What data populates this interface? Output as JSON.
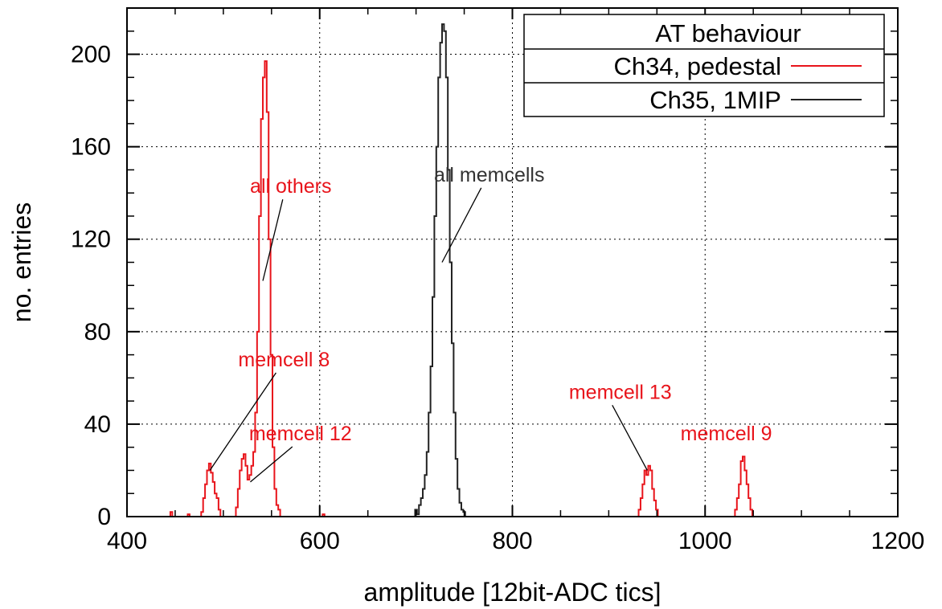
{
  "chart_data": {
    "type": "histogram",
    "title": "",
    "xlabel": "amplitude [12bit-ADC tics]",
    "ylabel": "no. entries",
    "xlim": [
      400,
      1200
    ],
    "ylim": [
      0,
      220
    ],
    "x_ticks": [
      400,
      600,
      800,
      1000,
      1200
    ],
    "y_ticks": [
      0,
      40,
      80,
      120,
      160,
      200
    ],
    "grid": true,
    "legend": {
      "title": "AT behaviour",
      "placement": "top-right",
      "entries": [
        {
          "label": "Ch34, pedestal",
          "color": "#e8141b"
        },
        {
          "label": "Ch35, 1MIP",
          "color": "#222222"
        }
      ]
    },
    "series": [
      {
        "name": "Ch34, pedestal",
        "color": "#e8141b",
        "bin_width": 2,
        "points": [
          [
            444,
            0
          ],
          [
            446,
            2
          ],
          [
            448,
            0
          ],
          [
            462,
            0
          ],
          [
            464,
            1
          ],
          [
            466,
            0
          ],
          [
            476,
            0
          ],
          [
            478,
            2
          ],
          [
            480,
            8
          ],
          [
            482,
            14
          ],
          [
            484,
            20
          ],
          [
            486,
            23
          ],
          [
            488,
            19
          ],
          [
            490,
            15
          ],
          [
            492,
            10
          ],
          [
            494,
            8
          ],
          [
            496,
            3
          ],
          [
            498,
            0
          ],
          [
            512,
            0
          ],
          [
            514,
            4
          ],
          [
            516,
            12
          ],
          [
            518,
            20
          ],
          [
            520,
            25
          ],
          [
            522,
            27
          ],
          [
            524,
            22
          ],
          [
            526,
            16
          ],
          [
            528,
            18
          ],
          [
            530,
            22
          ],
          [
            532,
            28
          ],
          [
            534,
            45
          ],
          [
            536,
            80
          ],
          [
            538,
            130
          ],
          [
            540,
            172
          ],
          [
            542,
            190
          ],
          [
            544,
            197
          ],
          [
            546,
            175
          ],
          [
            548,
            120
          ],
          [
            550,
            70
          ],
          [
            552,
            30
          ],
          [
            554,
            12
          ],
          [
            556,
            5
          ],
          [
            558,
            3
          ],
          [
            560,
            0
          ],
          [
            602,
            0
          ],
          [
            604,
            1
          ],
          [
            606,
            0
          ],
          [
            930,
            0
          ],
          [
            932,
            3
          ],
          [
            934,
            8
          ],
          [
            936,
            14
          ],
          [
            938,
            20
          ],
          [
            940,
            18
          ],
          [
            942,
            22
          ],
          [
            944,
            20
          ],
          [
            946,
            12
          ],
          [
            948,
            7
          ],
          [
            950,
            3
          ],
          [
            952,
            0
          ],
          [
            1030,
            0
          ],
          [
            1032,
            3
          ],
          [
            1034,
            8
          ],
          [
            1036,
            14
          ],
          [
            1038,
            24
          ],
          [
            1040,
            26
          ],
          [
            1042,
            20
          ],
          [
            1044,
            14
          ],
          [
            1046,
            8
          ],
          [
            1048,
            3
          ],
          [
            1050,
            0
          ]
        ]
      },
      {
        "name": "Ch35, 1MIP",
        "color": "#222222",
        "bin_width": 2,
        "points": [
          [
            698,
            0
          ],
          [
            700,
            3
          ],
          [
            702,
            1
          ],
          [
            704,
            5
          ],
          [
            706,
            8
          ],
          [
            708,
            12
          ],
          [
            710,
            18
          ],
          [
            712,
            28
          ],
          [
            714,
            45
          ],
          [
            716,
            65
          ],
          [
            718,
            95
          ],
          [
            720,
            130
          ],
          [
            722,
            160
          ],
          [
            724,
            190
          ],
          [
            726,
            205
          ],
          [
            728,
            213
          ],
          [
            730,
            210
          ],
          [
            732,
            190
          ],
          [
            734,
            150
          ],
          [
            736,
            110
          ],
          [
            738,
            75
          ],
          [
            740,
            45
          ],
          [
            742,
            25
          ],
          [
            744,
            12
          ],
          [
            746,
            6
          ],
          [
            748,
            3
          ],
          [
            750,
            2
          ],
          [
            752,
            0
          ]
        ]
      }
    ],
    "annotations": [
      {
        "text": "all others",
        "color": "#e8141b",
        "x": 570,
        "y": 140,
        "arrow_to": [
          541,
          102
        ]
      },
      {
        "text": "all memcells",
        "color": "#333333",
        "x": 776,
        "y": 145,
        "arrow_to": [
          727,
          110
        ]
      },
      {
        "text": "memcell 8",
        "color": "#e8141b",
        "x": 563,
        "y": 65,
        "arrow_to": [
          486,
          20
        ]
      },
      {
        "text": "memcell 12",
        "color": "#e8141b",
        "x": 580,
        "y": 33,
        "arrow_to": [
          528,
          15
        ]
      },
      {
        "text": "memcell 13",
        "color": "#e8141b",
        "x": 912,
        "y": 51,
        "arrow_to": [
          940,
          20
        ]
      },
      {
        "text": "memcell 9",
        "color": "#e8141b",
        "x": 1022,
        "y": 33,
        "arrow_to": null
      }
    ]
  }
}
